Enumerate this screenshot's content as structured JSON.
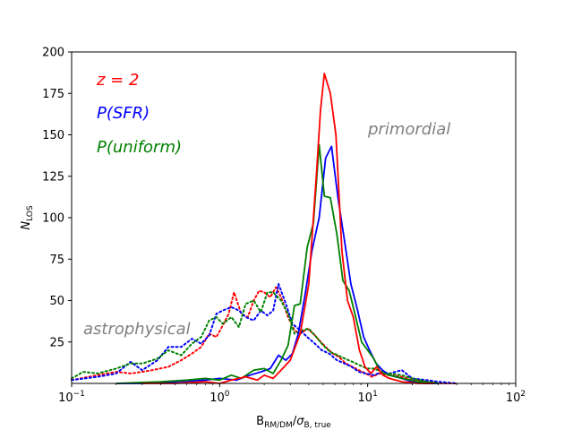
{
  "chart_data": {
    "type": "line",
    "title": "",
    "xlabel": "B_RM/DM / σ_B,true",
    "ylabel": "N_LOS",
    "xscale": "log",
    "xlim": [
      0.1,
      100
    ],
    "ylim": [
      0,
      200
    ],
    "yticks": [
      25,
      50,
      75,
      100,
      125,
      150,
      175,
      200
    ],
    "xticks": [
      {
        "value": 0.1,
        "base": "10",
        "exp": "−1"
      },
      {
        "value": 1,
        "base": "10",
        "exp": "0"
      },
      {
        "value": 10,
        "base": "10",
        "exp": "1"
      },
      {
        "value": 100,
        "base": "10",
        "exp": "2"
      }
    ],
    "xlabel_parts": {
      "main": "B",
      "main_sub": "RM/DM",
      "slash": "/",
      "denom": "σ",
      "denom_sub": "B, true"
    },
    "ylabel_parts": {
      "main": "N",
      "sub": "LOS"
    },
    "legend": [
      {
        "label": "z = 2",
        "color": "#ff0000"
      },
      {
        "label": "P(SFR)",
        "color": "#0000ff"
      },
      {
        "label": "P(uniform)",
        "color": "#008000"
      }
    ],
    "legend_placement": "top-left",
    "annotations": [
      {
        "text": "primordial",
        "color": "#808080",
        "x": 10,
        "y": 150
      },
      {
        "text": "astrophysical",
        "color": "#808080",
        "x": 0.12,
        "y": 31
      }
    ],
    "series": [
      {
        "name": "primordial z=2",
        "color": "#ff0000",
        "style": "solid",
        "x": [
          0.3,
          0.5,
          0.8,
          1.0,
          1.2,
          1.5,
          1.8,
          2.0,
          2.3,
          2.6,
          3.0,
          3.5,
          4.0,
          4.5,
          4.8,
          5.1,
          5.6,
          6.1,
          6.7,
          7.3,
          8.0,
          8.8,
          9.6,
          10.5,
          11.5,
          12.7,
          14,
          17,
          22,
          28
        ],
        "values": [
          0,
          0,
          1,
          0,
          2,
          4,
          2,
          5,
          3,
          8,
          14,
          30,
          60,
          125,
          165,
          187,
          175,
          150,
          80,
          50,
          40,
          20,
          10,
          6,
          10,
          5,
          3,
          1,
          0,
          0
        ]
      },
      {
        "name": "primordial P(SFR)",
        "color": "#0000ff",
        "style": "solid",
        "x": [
          0.2,
          0.3,
          0.5,
          0.8,
          1.0,
          1.3,
          1.6,
          1.9,
          2.2,
          2.5,
          2.8,
          3.1,
          3.4,
          3.8,
          4.2,
          4.7,
          5.2,
          5.7,
          6.3,
          7.0,
          7.7,
          8.5,
          9.4,
          10.3,
          11.4,
          12.6,
          14,
          17,
          20,
          25,
          30
        ],
        "values": [
          0,
          0,
          1,
          2,
          3,
          2,
          5,
          7,
          9,
          17,
          14,
          18,
          30,
          55,
          80,
          100,
          136,
          143,
          112,
          85,
          60,
          45,
          28,
          20,
          12,
          8,
          5,
          3,
          1,
          0,
          0
        ]
      },
      {
        "name": "primordial P(uniform)",
        "color": "#008000",
        "style": "solid",
        "x": [
          0.2,
          0.4,
          0.6,
          0.8,
          1.0,
          1.2,
          1.4,
          1.7,
          2.0,
          2.3,
          2.6,
          2.9,
          3.2,
          3.5,
          3.9,
          4.3,
          4.7,
          5.1,
          5.6,
          6.2,
          6.8,
          7.5,
          8.3,
          9.1,
          10.0,
          11.0,
          12.2,
          14,
          17,
          22,
          30
        ],
        "values": [
          0,
          1,
          2,
          3,
          2,
          5,
          3,
          8,
          9,
          6,
          14,
          23,
          47,
          48,
          82,
          97,
          144,
          113,
          112,
          90,
          62,
          56,
          40,
          25,
          20,
          15,
          7,
          5,
          3,
          1,
          0
        ]
      },
      {
        "name": "astrophysical z=2",
        "color": "#ff0000",
        "style": "dotted",
        "x": [
          0.1,
          0.15,
          0.2,
          0.25,
          0.3,
          0.35,
          0.45,
          0.55,
          0.65,
          0.75,
          0.85,
          0.95,
          1.05,
          1.15,
          1.25,
          1.4,
          1.55,
          1.7,
          1.85,
          2.0,
          2.2,
          2.4,
          2.6,
          2.9,
          3.2,
          3.5,
          3.9,
          4.3,
          4.7,
          5.2,
          5.8,
          6.4,
          7.1,
          7.9,
          8.7,
          9.7,
          10.7,
          12,
          14,
          17,
          20,
          25,
          30,
          40
        ],
        "values": [
          2,
          5,
          7,
          6,
          7,
          8,
          10,
          14,
          18,
          22,
          30,
          28,
          35,
          42,
          55,
          42,
          40,
          50,
          56,
          55,
          52,
          58,
          52,
          40,
          32,
          30,
          33,
          30,
          26,
          22,
          18,
          16,
          12,
          10,
          8,
          6,
          4,
          6,
          5,
          4,
          2,
          1,
          0,
          0
        ]
      },
      {
        "name": "astrophysical P(SFR)",
        "color": "#0000ff",
        "style": "dotted",
        "x": [
          0.1,
          0.15,
          0.2,
          0.25,
          0.3,
          0.38,
          0.45,
          0.55,
          0.65,
          0.75,
          0.85,
          0.95,
          1.05,
          1.2,
          1.35,
          1.5,
          1.7,
          1.9,
          2.1,
          2.3,
          2.5,
          2.8,
          3.1,
          3.5,
          3.9,
          4.4,
          4.9,
          5.5,
          6.2,
          7.0,
          7.8,
          8.7,
          9.7,
          11,
          12.5,
          14,
          17,
          20,
          25,
          30,
          40
        ],
        "values": [
          2,
          4,
          6,
          13,
          8,
          14,
          22,
          22,
          27,
          24,
          29,
          42,
          44,
          46,
          44,
          40,
          38,
          44,
          41,
          44,
          60,
          48,
          36,
          32,
          28,
          24,
          20,
          18,
          14,
          12,
          10,
          7,
          6,
          5,
          7,
          6,
          8,
          3,
          2,
          1,
          0
        ]
      },
      {
        "name": "astrophysical P(uniform)",
        "color": "#008000",
        "style": "dotted",
        "x": [
          0.1,
          0.12,
          0.15,
          0.2,
          0.25,
          0.3,
          0.38,
          0.45,
          0.55,
          0.65,
          0.75,
          0.85,
          0.95,
          1.05,
          1.2,
          1.35,
          1.5,
          1.7,
          1.9,
          2.1,
          2.3,
          2.6,
          2.9,
          3.2,
          3.6,
          4.0,
          4.5,
          5.0,
          5.6,
          6.3,
          7.0,
          7.9,
          8.8,
          9.9,
          11,
          12.5,
          14,
          17,
          20,
          25,
          30
        ],
        "values": [
          3,
          7,
          6,
          9,
          12,
          12,
          15,
          20,
          17,
          24,
          28,
          38,
          40,
          36,
          40,
          34,
          48,
          50,
          43,
          55,
          55,
          50,
          42,
          30,
          32,
          33,
          28,
          23,
          19,
          17,
          15,
          13,
          11,
          9,
          9,
          7,
          6,
          5,
          3,
          1,
          0
        ]
      }
    ]
  }
}
